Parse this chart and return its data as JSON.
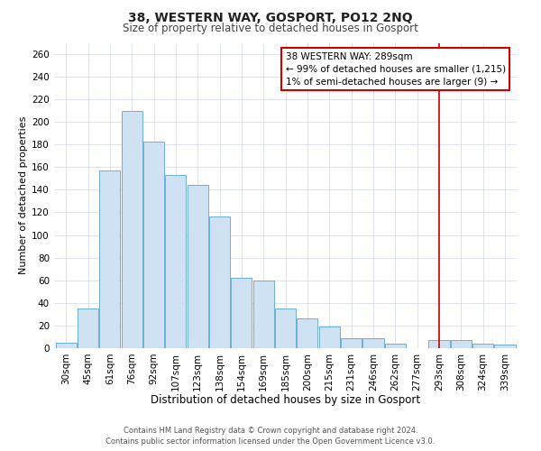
{
  "title": "38, WESTERN WAY, GOSPORT, PO12 2NQ",
  "subtitle": "Size of property relative to detached houses in Gosport",
  "xlabel": "Distribution of detached houses by size in Gosport",
  "ylabel": "Number of detached properties",
  "bar_labels": [
    "30sqm",
    "45sqm",
    "61sqm",
    "76sqm",
    "92sqm",
    "107sqm",
    "123sqm",
    "138sqm",
    "154sqm",
    "169sqm",
    "185sqm",
    "200sqm",
    "215sqm",
    "231sqm",
    "246sqm",
    "262sqm",
    "277sqm",
    "293sqm",
    "308sqm",
    "324sqm",
    "339sqm"
  ],
  "bar_values": [
    5,
    35,
    157,
    210,
    183,
    153,
    144,
    116,
    62,
    60,
    35,
    26,
    19,
    9,
    9,
    4,
    0,
    7,
    7,
    4,
    3
  ],
  "bar_color": "#cfe2f3",
  "bar_edge_color": "#6baed6",
  "vline_x_index": 17,
  "vline_color": "#cc0000",
  "annotation_title": "38 WESTERN WAY: 289sqm",
  "annotation_line1": "← 99% of detached houses are smaller (1,215)",
  "annotation_line2": "1% of semi-detached houses are larger (9) →",
  "annotation_box_color": "#ffffff",
  "annotation_box_edge": "#cc0000",
  "footer_line1": "Contains HM Land Registry data © Crown copyright and database right 2024.",
  "footer_line2": "Contains public sector information licensed under the Open Government Licence v3.0.",
  "ylim": [
    0,
    270
  ],
  "yticks": [
    0,
    20,
    40,
    60,
    80,
    100,
    120,
    140,
    160,
    180,
    200,
    220,
    240,
    260
  ],
  "title_fontsize": 10,
  "subtitle_fontsize": 8.5,
  "xlabel_fontsize": 8.5,
  "ylabel_fontsize": 8,
  "tick_fontsize": 7.5,
  "footer_fontsize": 6,
  "annotation_fontsize": 7.5
}
